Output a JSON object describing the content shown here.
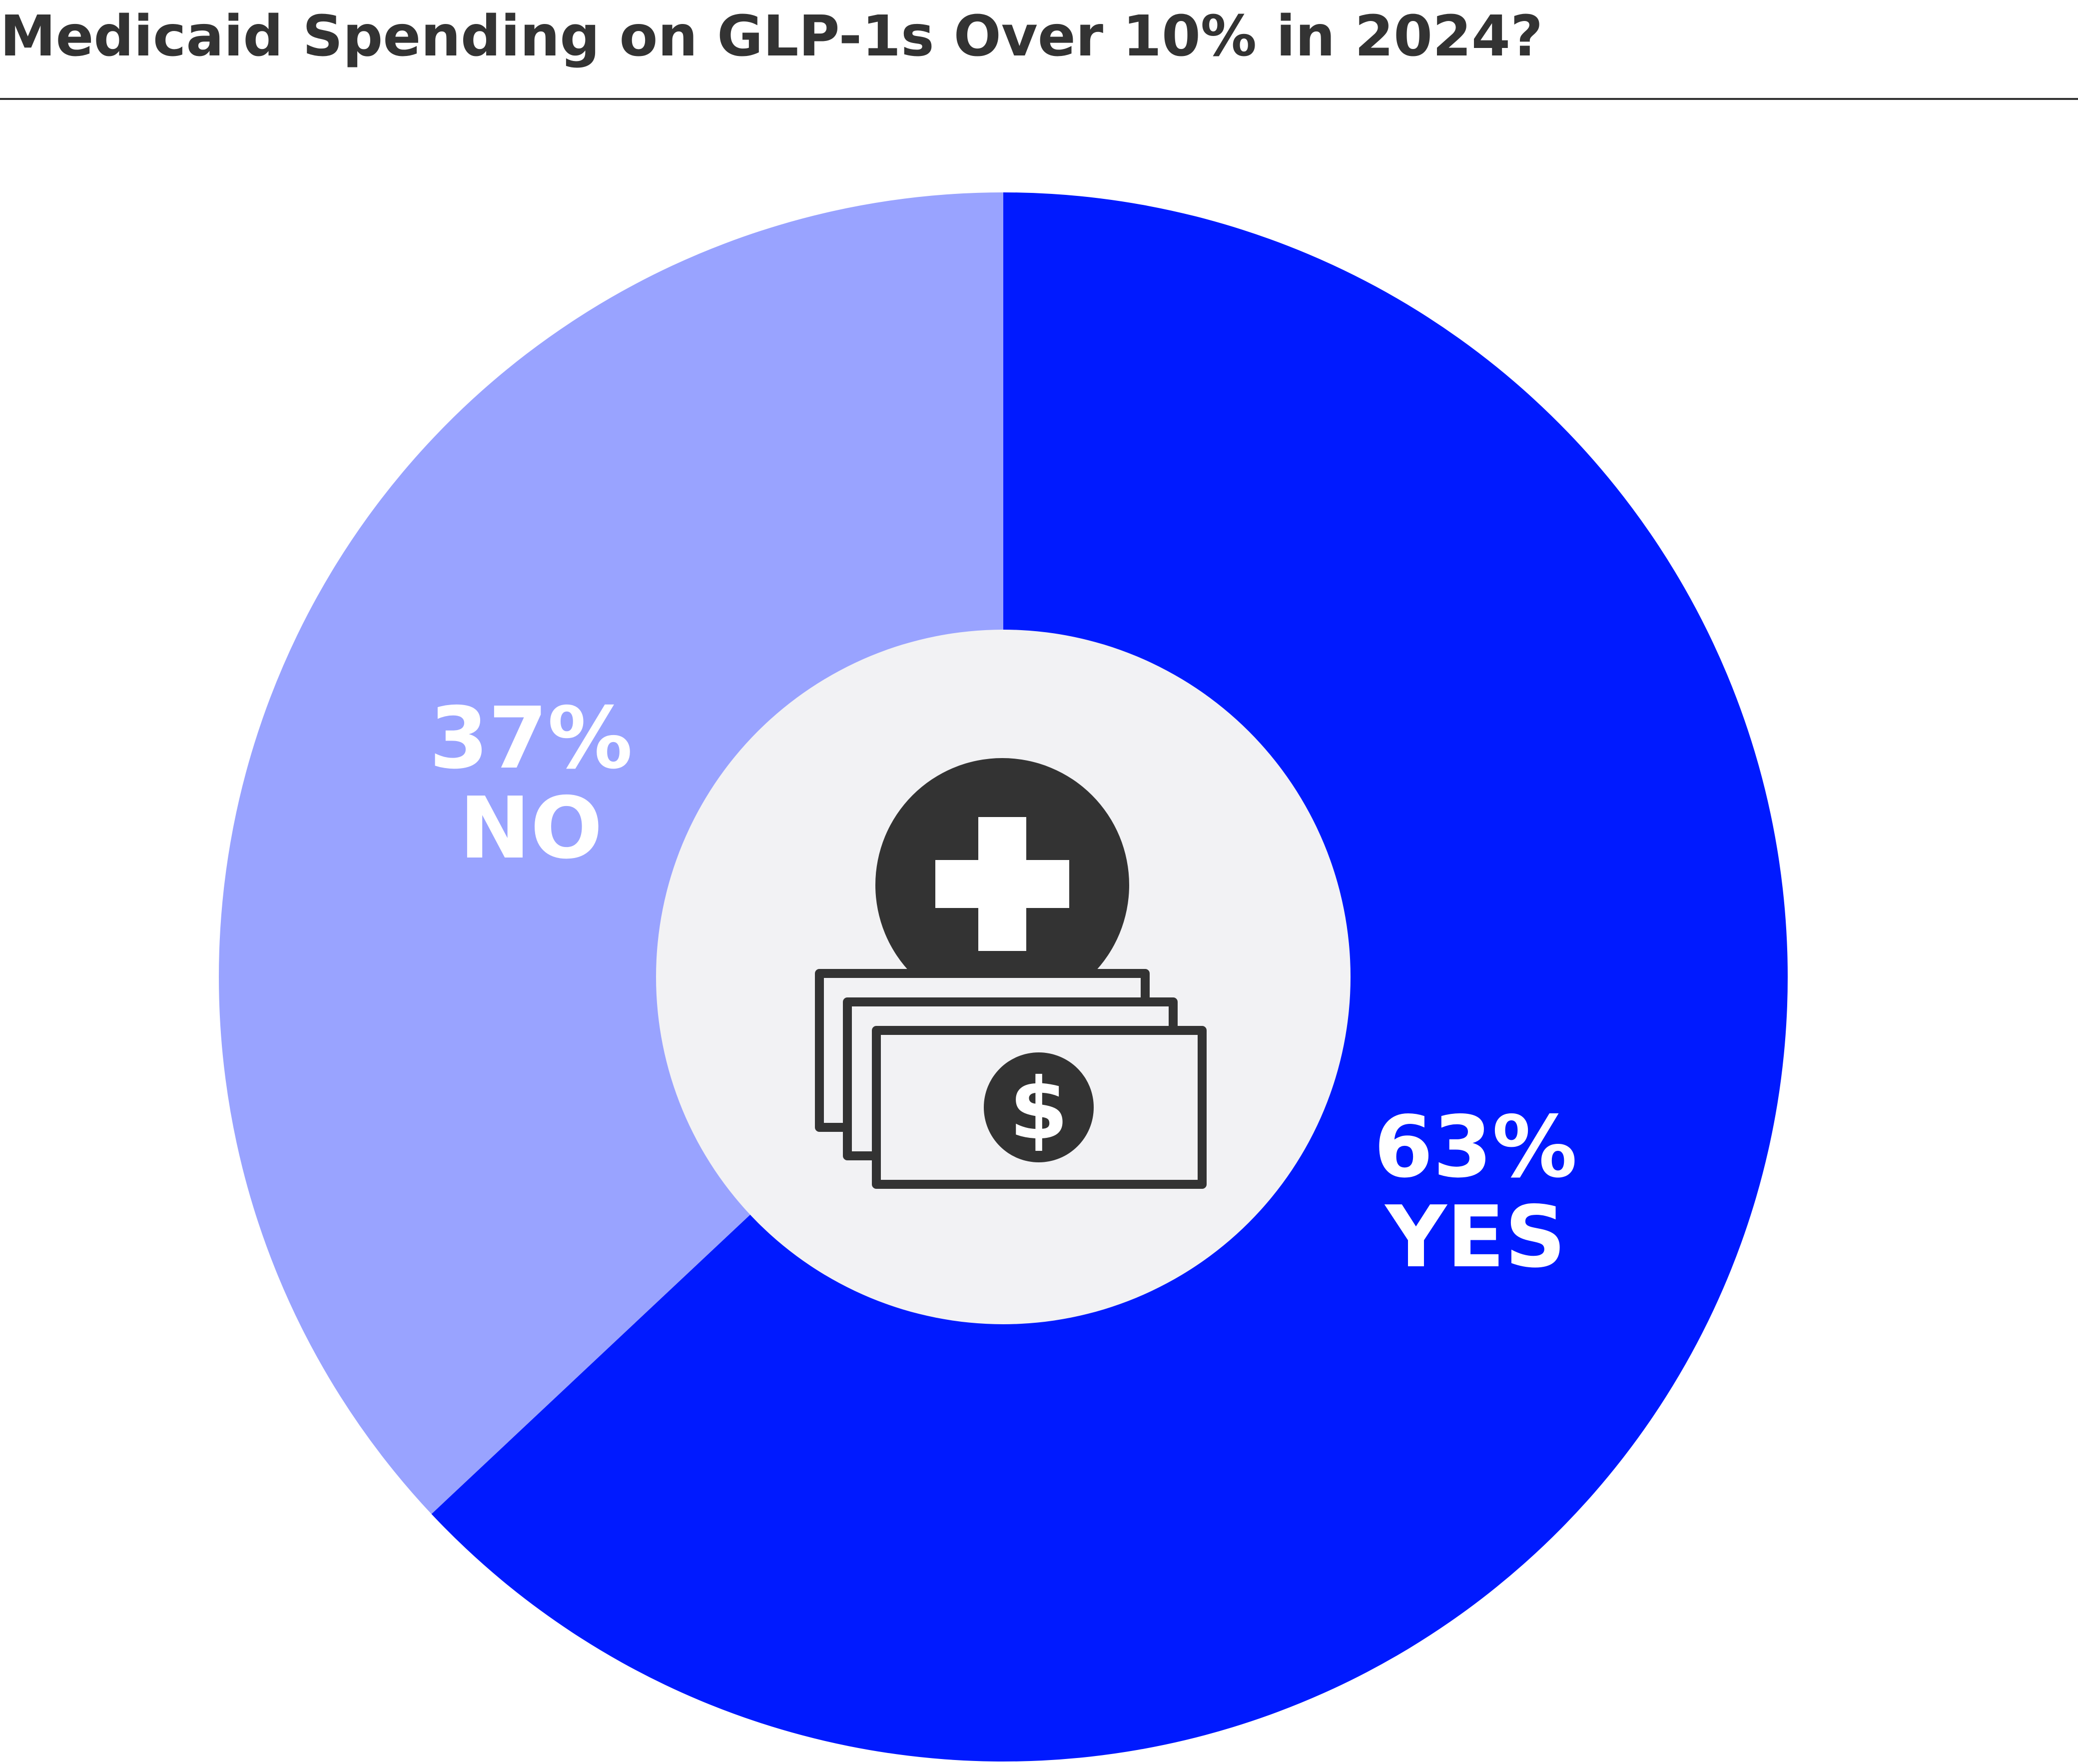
{
  "title": "Medicaid Spending on GLP-1s Over 10% in 2024?",
  "colors": {
    "yes": "#001aff",
    "no": "#99a3ff",
    "center": "#f2f2f4",
    "icon": "#333333",
    "label": "#ffffff",
    "title": "#333333"
  },
  "center_icon": {
    "top": "medical-cross-coin-icon",
    "bottom": "dollar-bills-icon"
  },
  "chart_data": {
    "type": "pie",
    "title": "Medicaid Spending on GLP-1s Over 10% in 2024?",
    "donut": true,
    "start": "12 o'clock, clockwise",
    "slices": [
      {
        "name": "YES",
        "value": 63,
        "percent_label": "63%",
        "label": "YES",
        "color": "#001aff"
      },
      {
        "name": "NO",
        "value": 37,
        "percent_label": "37%",
        "label": "NO",
        "color": "#99a3ff"
      }
    ]
  }
}
